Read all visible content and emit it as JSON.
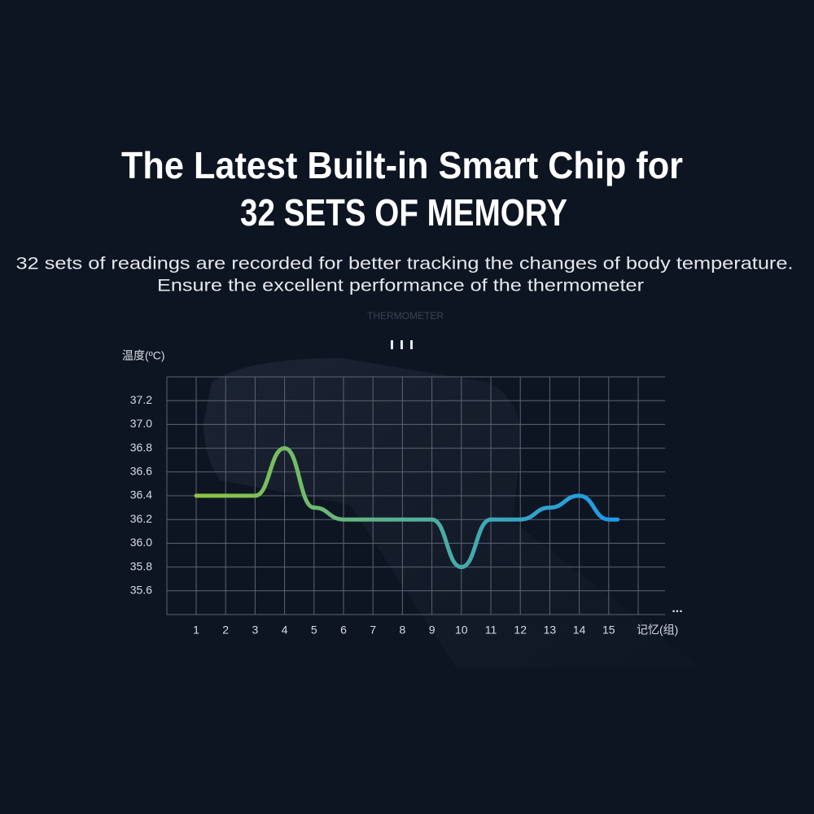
{
  "chart_data": {
    "type": "line",
    "title": [
      "The Latest Built-in Smart Chip for",
      "32 SETS OF MEMORY"
    ],
    "subtitle": [
      "32 sets of readings are recorded for better tracking the changes of body temperature.",
      "Ensure the excellent performance of the thermometer"
    ],
    "watermark": "THERMOMETER",
    "y_label": "温度(ºC)",
    "x_label": "记忆(组)",
    "categories": [
      "1",
      "2",
      "3",
      "4",
      "5",
      "6",
      "7",
      "8",
      "9",
      "10",
      "11",
      "12",
      "13",
      "14",
      "15"
    ],
    "series": [
      {
        "color_start": "#8dc63f",
        "color_end": "#1e9be8",
        "values": [
          36.4,
          36.4,
          36.4,
          36.8,
          36.3,
          36.2,
          36.2,
          36.2,
          36.2,
          35.8,
          36.2,
          36.2,
          36.3,
          36.4,
          36.2
        ]
      }
    ],
    "ylim": [
      35.4,
      37.4
    ],
    "yticks": [
      35.6,
      35.8,
      {
        "value": 36,
        "label": "36.0"
      },
      36.2,
      36.4,
      36.6,
      36.8,
      {
        "value": 37,
        "label": "37.0"
      },
      37.2
    ],
    "grid": true
  }
}
